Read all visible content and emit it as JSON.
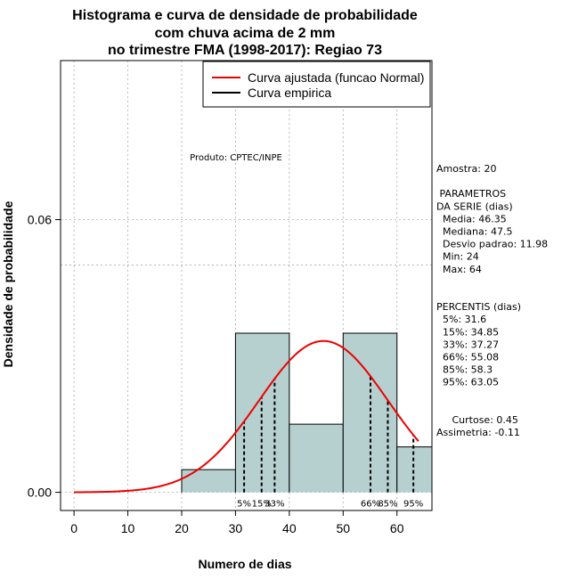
{
  "chart_data": {
    "type": "bar",
    "title_lines": [
      "Histograma e curva de densidade de probabilidade",
      "com chuva acima de 2 mm",
      "no trimestre FMA (1998-2017): Regiao 73"
    ],
    "xlabel": "Numero de dias",
    "ylabel": "Densidade de probabilidade",
    "xlim": [
      -2.5,
      66.5
    ],
    "ylim": [
      -0.004,
      0.095
    ],
    "x_ticks": [
      0,
      10,
      20,
      30,
      40,
      50,
      60
    ],
    "y_ticks": [
      0.0,
      0.06
    ],
    "y_tick_labels": [
      "0.00",
      "0.06"
    ],
    "bins": [
      {
        "start": 20,
        "end": 30,
        "density": 0.005
      },
      {
        "start": 30,
        "end": 40,
        "density": 0.035
      },
      {
        "start": 40,
        "end": 50,
        "density": 0.015
      },
      {
        "start": 50,
        "end": 60,
        "density": 0.035
      },
      {
        "start": 60,
        "end": 66.5,
        "density": 0.01
      }
    ],
    "normal_fit": {
      "mean": 46.35,
      "sd": 11.98,
      "x_from": 0,
      "x_to": 64
    },
    "percentile_lines": [
      {
        "label": "5%",
        "x": 31.6
      },
      {
        "label": "15%",
        "x": 34.85
      },
      {
        "label": "33%",
        "x": 37.27
      },
      {
        "label": "66%",
        "x": 55.08
      },
      {
        "label": "85%",
        "x": 58.3
      },
      {
        "label": "95%",
        "x": 63.05
      }
    ],
    "reference_hline": 0.05,
    "grid": true,
    "annotation": "Produto: CPTEC/INPE",
    "legend": {
      "placement": "top-right",
      "entries": [
        {
          "label": "Curva ajustada (funcao Normal)",
          "color": "#ee0000"
        },
        {
          "label": "Curva empirica",
          "color": "#000000"
        }
      ]
    },
    "stats_panel": [
      "Amostra: 20",
      "",
      " PARAMETROS",
      "DA SERIE (dias)",
      "  Media: 46.35",
      "  Mediana: 47.5",
      "  Desvio padrao: 11.98",
      "  Min: 24",
      "  Max: 64",
      "",
      "",
      "PERCENTIS (dias)",
      "  5%: 31.6",
      "  15%: 34.85",
      "  33%: 37.27",
      "  66%: 55.08",
      "  85%: 58.3",
      "  95%: 63.05",
      "",
      "",
      "     Curtose: 0.45",
      "Assimetria: -0.11"
    ],
    "colors": {
      "bar_fill": "#b6cfcf",
      "curve": "#ee0000",
      "grid": "#aaaaaa"
    }
  }
}
